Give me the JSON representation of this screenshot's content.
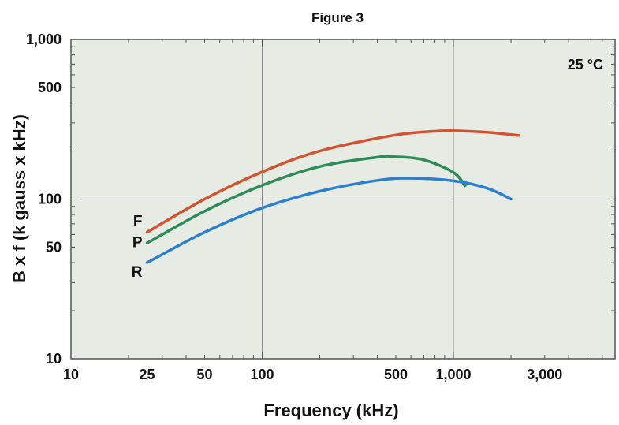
{
  "chart_data": {
    "type": "line",
    "title": "Figure 3",
    "xlabel": "Frequency (kHz)",
    "ylabel": "B x f (k gauss x kHz)",
    "x_scale": "log",
    "y_scale": "log",
    "xlim": [
      10,
      7000
    ],
    "ylim": [
      10,
      1000
    ],
    "x_ticks": [
      {
        "value": 10,
        "label": "10"
      },
      {
        "value": 25,
        "label": "25"
      },
      {
        "value": 50,
        "label": "50"
      },
      {
        "value": 100,
        "label": "100"
      },
      {
        "value": 500,
        "label": "500"
      },
      {
        "value": 1000,
        "label": "1,000"
      },
      {
        "value": 3000,
        "label": "3,000"
      }
    ],
    "y_ticks": [
      {
        "value": 10,
        "label": "10"
      },
      {
        "value": 50,
        "label": "50"
      },
      {
        "value": 100,
        "label": "100"
      },
      {
        "value": 500,
        "label": "500"
      },
      {
        "value": 1000,
        "label": "1,000"
      }
    ],
    "grid": true,
    "annotation": "25 °C",
    "series": [
      {
        "name": "F",
        "color": "#d4522e",
        "points": [
          [
            25,
            62
          ],
          [
            50,
            100
          ],
          [
            100,
            148
          ],
          [
            200,
            200
          ],
          [
            500,
            252
          ],
          [
            900,
            268
          ],
          [
            1000,
            268
          ],
          [
            1500,
            262
          ],
          [
            2200,
            250
          ]
        ]
      },
      {
        "name": "P",
        "color": "#2e8b5a",
        "points": [
          [
            25,
            53
          ],
          [
            50,
            84
          ],
          [
            100,
            122
          ],
          [
            200,
            160
          ],
          [
            400,
            183
          ],
          [
            500,
            184
          ],
          [
            700,
            176
          ],
          [
            1000,
            147
          ],
          [
            1150,
            121
          ]
        ]
      },
      {
        "name": "R",
        "color": "#2a7fcf",
        "points": [
          [
            25,
            40
          ],
          [
            50,
            62
          ],
          [
            100,
            88
          ],
          [
            200,
            112
          ],
          [
            400,
            131
          ],
          [
            600,
            135
          ],
          [
            1000,
            130
          ],
          [
            1500,
            117
          ],
          [
            2000,
            100
          ]
        ]
      }
    ]
  }
}
